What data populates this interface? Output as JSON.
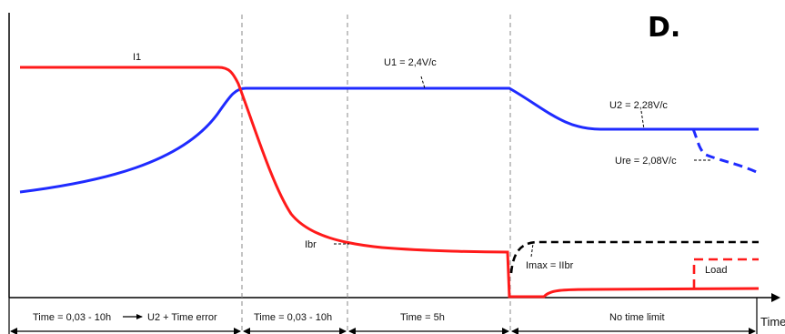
{
  "corner_letter": "D.",
  "curve_labels": {
    "current_i1": "I1",
    "voltage_u1": "U1 = 2,4V/c",
    "voltage_u2": "U2 = 2,28V/c",
    "voltage_ure": "Ure = 2,08V/c",
    "current_ibr": "Ibr",
    "imax": "Imax = IIbr",
    "load": "Load"
  },
  "phases": [
    "Time = 0,03 - 10h",
    "U2 + Time error",
    "Time = 0,03 - 10h",
    "Time = 5h",
    "No time limit"
  ],
  "x_axis_label": "Time",
  "colors": {
    "current": "#ff1a1a",
    "voltage": "#1f2bff",
    "imax": "#000000",
    "grid": "#888888"
  }
}
